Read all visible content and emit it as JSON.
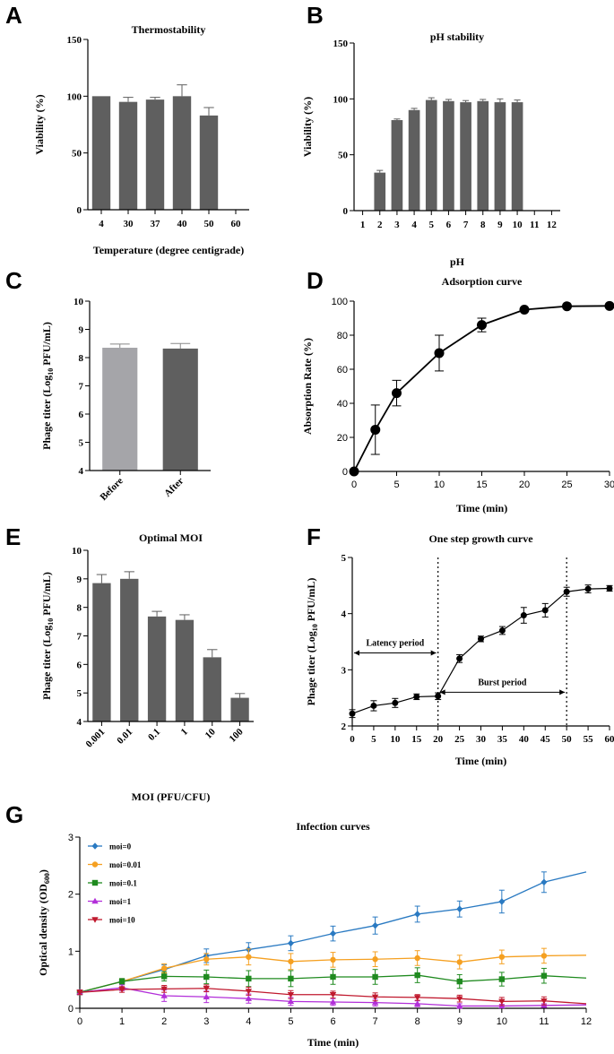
{
  "panels": {
    "A": "A",
    "B": "B",
    "C": "C",
    "D": "D",
    "E": "E",
    "F": "F",
    "G": "G"
  },
  "chart_data": [
    {
      "id": "A",
      "type": "bar",
      "title": "Thermostability",
      "xlabel": "Temperature (degree centigrade)",
      "ylabel": "Viability (%)",
      "ylim": [
        0,
        150
      ],
      "yticks": [
        0,
        50,
        100,
        150
      ],
      "categories": [
        "4",
        "30",
        "37",
        "40",
        "50",
        "60"
      ],
      "values": [
        100,
        95,
        97,
        100,
        83,
        0
      ],
      "errors": [
        0,
        4,
        2,
        10,
        7,
        0
      ],
      "color": "#5f5f5f"
    },
    {
      "id": "B",
      "type": "bar",
      "title": "pH stability",
      "xlabel": "pH",
      "ylabel": "Viability (%)",
      "ylim": [
        0,
        150
      ],
      "yticks": [
        0,
        50,
        100,
        150
      ],
      "categories": [
        "1",
        "2",
        "3",
        "4",
        "5",
        "6",
        "7",
        "8",
        "9",
        "10",
        "11",
        "12"
      ],
      "values": [
        0,
        34,
        81,
        90,
        99,
        98,
        97,
        98,
        97,
        97,
        0,
        0
      ],
      "errors": [
        0,
        2,
        1,
        1.5,
        2,
        1.5,
        1.5,
        1.5,
        3,
        2,
        0,
        0
      ],
      "color": "#5f5f5f"
    },
    {
      "id": "C",
      "type": "bar",
      "title": "",
      "xlabel": "",
      "ylabel": "Phage titer (Log10 PFU/mL)",
      "ylabel_main": "Phage titer (Log",
      "ylabel_sub": "10",
      "ylabel_tail": " PFU/mL)",
      "ylim": [
        4,
        10
      ],
      "yticks": [
        4,
        5,
        6,
        7,
        8,
        9,
        10
      ],
      "categories": [
        "Before",
        "After"
      ],
      "values": [
        8.35,
        8.32
      ],
      "errors": [
        0.13,
        0.18
      ],
      "colors": [
        "#a5a5a9",
        "#5f5f5f"
      ]
    },
    {
      "id": "D",
      "type": "line",
      "title": "Adsorption curve",
      "xlabel": "Time (min)",
      "ylabel": "Absorption Rate (%)",
      "xlim": [
        0,
        30
      ],
      "ylim": [
        0,
        100
      ],
      "xticks": [
        0,
        5,
        10,
        15,
        20,
        25,
        30
      ],
      "yticks": [
        0,
        20,
        40,
        60,
        80,
        100
      ],
      "x": [
        0,
        2.5,
        5,
        10,
        15,
        20,
        25,
        30
      ],
      "y": [
        0,
        24.5,
        46,
        69.5,
        86,
        95,
        97,
        97.2
      ],
      "errors": [
        0,
        14.5,
        7.5,
        10.5,
        4,
        0.5,
        0.5,
        0.5
      ]
    },
    {
      "id": "E",
      "type": "bar",
      "title": "Optimal MOI",
      "xlabel": "MOI (PFU/CFU)",
      "ylabel": "Phage titer (Log10 PFU/mL)",
      "ylabel_main": "Phage titer (Log",
      "ylabel_sub": "10",
      "ylabel_tail": " PFU/mL)",
      "ylim": [
        4,
        10
      ],
      "yticks": [
        4,
        5,
        6,
        7,
        8,
        9,
        10
      ],
      "categories": [
        "0.001",
        "0.01",
        "0.1",
        "1",
        "10",
        "100"
      ],
      "values": [
        8.85,
        9.0,
        7.68,
        7.56,
        6.25,
        4.83
      ],
      "errors": [
        0.3,
        0.25,
        0.18,
        0.18,
        0.27,
        0.15
      ],
      "color": "#5f5f5f"
    },
    {
      "id": "F",
      "type": "line",
      "title": "One step growth curve",
      "xlabel": "Time (min)",
      "ylabel": "Phage titer (Log10 PFU/mL)",
      "ylabel_main": "Phage titer (Log",
      "ylabel_sub": "10",
      "ylabel_tail": " PFU/mL)",
      "xlim": [
        0,
        60
      ],
      "ylim": [
        2,
        5
      ],
      "xticks": [
        0,
        5,
        10,
        15,
        20,
        25,
        30,
        35,
        40,
        45,
        50,
        55,
        60
      ],
      "yticks": [
        2,
        3,
        4,
        5
      ],
      "x": [
        0,
        5,
        10,
        15,
        20,
        25,
        30,
        35,
        40,
        45,
        50,
        55,
        60
      ],
      "y": [
        2.22,
        2.36,
        2.41,
        2.52,
        2.53,
        3.2,
        3.55,
        3.7,
        3.97,
        4.06,
        4.39,
        4.44,
        4.45
      ],
      "errors": [
        0.07,
        0.09,
        0.08,
        0.05,
        0.06,
        0.07,
        0.05,
        0.07,
        0.14,
        0.12,
        0.08,
        0.07,
        0.05
      ],
      "vlines": [
        20,
        50
      ],
      "annotations": [
        {
          "text": "Latency period",
          "x_from": 0,
          "x_to": 20,
          "y": 3.3
        },
        {
          "text": "Burst period",
          "x_from": 20,
          "x_to": 50,
          "y": 2.6
        }
      ]
    },
    {
      "id": "G",
      "type": "line",
      "title": "Infection curves",
      "xlabel": "Time (min)",
      "ylabel": "Optical density (OD600)",
      "ylabel_main": "Optical density (OD",
      "ylabel_sub": "600",
      "ylabel_tail": ")",
      "xlim": [
        0,
        12
      ],
      "ylim": [
        0,
        3
      ],
      "xticks": [
        0,
        1,
        2,
        3,
        4,
        5,
        6,
        7,
        8,
        9,
        10,
        11,
        12
      ],
      "yticks": [
        0,
        1,
        2,
        3
      ],
      "legend_position": "top-left",
      "x": [
        0,
        1,
        2,
        3,
        4,
        5,
        6,
        7,
        8,
        9,
        10,
        11,
        12
      ],
      "series": [
        {
          "name": "moi=0",
          "color": "#2a7ac2",
          "marker": "diamond",
          "values": [
            0.28,
            0.47,
            0.68,
            0.92,
            1.03,
            1.14,
            1.31,
            1.45,
            1.65,
            1.74,
            1.87,
            2.21,
            2.39
          ],
          "errors": [
            0.04,
            0.05,
            0.08,
            0.12,
            0.12,
            0.13,
            0.13,
            0.15,
            0.14,
            0.14,
            0.2,
            0.18,
            0
          ]
        },
        {
          "name": "moi=0.01",
          "color": "#f5a021",
          "marker": "circle",
          "values": [
            0.28,
            0.47,
            0.7,
            0.86,
            0.9,
            0.82,
            0.85,
            0.86,
            0.88,
            0.81,
            0.9,
            0.92,
            0.93
          ],
          "errors": [
            0.04,
            0.05,
            0.08,
            0.1,
            0.14,
            0.14,
            0.13,
            0.13,
            0.13,
            0.12,
            0.12,
            0.13,
            0
          ]
        },
        {
          "name": "moi=0.1",
          "color": "#1f8a1f",
          "marker": "square",
          "values": [
            0.28,
            0.47,
            0.56,
            0.55,
            0.52,
            0.52,
            0.55,
            0.55,
            0.58,
            0.47,
            0.51,
            0.57,
            0.53
          ],
          "errors": [
            0.04,
            0.05,
            0.08,
            0.12,
            0.14,
            0.14,
            0.13,
            0.13,
            0.13,
            0.12,
            0.12,
            0.13,
            0
          ]
        },
        {
          "name": "moi=1",
          "color": "#b22fd9",
          "marker": "triangle",
          "values": [
            0.28,
            0.36,
            0.22,
            0.2,
            0.17,
            0.12,
            0.11,
            0.1,
            0.08,
            0.04,
            0.04,
            0.05,
            0.06
          ],
          "errors": [
            0.04,
            0.05,
            0.1,
            0.1,
            0.08,
            0.07,
            0.06,
            0.06,
            0.05,
            0.04,
            0.03,
            0.03,
            0
          ]
        },
        {
          "name": "moi=10",
          "color": "#c0192e",
          "marker": "triangle-down",
          "values": [
            0.28,
            0.33,
            0.34,
            0.35,
            0.3,
            0.24,
            0.24,
            0.2,
            0.19,
            0.17,
            0.12,
            0.13,
            0.08
          ],
          "errors": [
            0.04,
            0.05,
            0.06,
            0.06,
            0.07,
            0.07,
            0.06,
            0.07,
            0.05,
            0.06,
            0.07,
            0.07,
            0
          ]
        }
      ]
    }
  ]
}
